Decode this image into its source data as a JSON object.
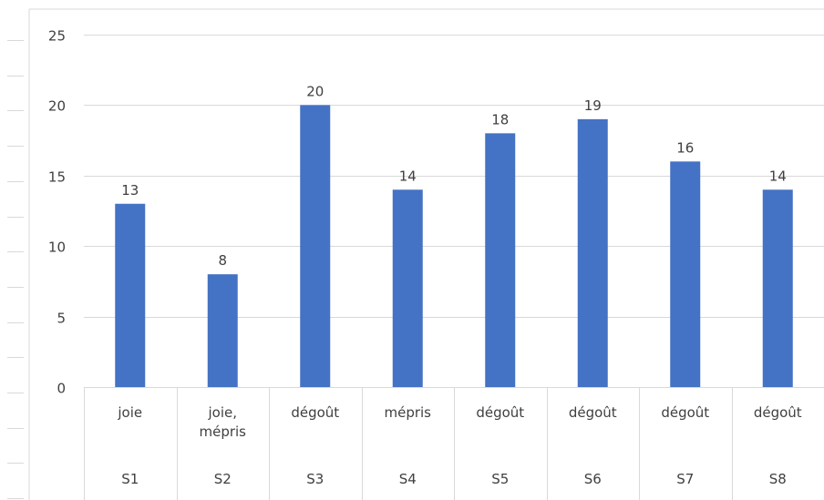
{
  "chart_data": {
    "type": "bar",
    "title": "",
    "xlabel": "",
    "ylabel": "",
    "ylim": [
      0,
      25
    ],
    "yticks": [
      0,
      5,
      10,
      15,
      20,
      25
    ],
    "grid": true,
    "legend": "none",
    "categories": [
      {
        "label": [
          "joie"
        ],
        "group": "S1"
      },
      {
        "label": [
          "joie,",
          "mépris"
        ],
        "group": "S2"
      },
      {
        "label": [
          "dégoût"
        ],
        "group": "S3"
      },
      {
        "label": [
          "mépris"
        ],
        "group": "S4"
      },
      {
        "label": [
          "dégoût"
        ],
        "group": "S5"
      },
      {
        "label": [
          "dégoût"
        ],
        "group": "S6"
      },
      {
        "label": [
          "dégoût"
        ],
        "group": "S7"
      },
      {
        "label": [
          "dégoût"
        ],
        "group": "S8"
      }
    ],
    "values": [
      13,
      8,
      20,
      14,
      18,
      19,
      16,
      14
    ],
    "data_labels": true,
    "colors": {
      "bar": "#4472C4",
      "grid": "#D9D9D9",
      "text": "#404040",
      "frame": "#D9D9D9"
    }
  }
}
